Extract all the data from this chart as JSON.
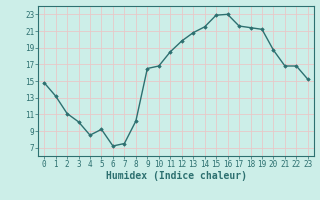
{
  "x": [
    0,
    1,
    2,
    3,
    4,
    5,
    6,
    7,
    8,
    9,
    10,
    11,
    12,
    13,
    14,
    15,
    16,
    17,
    18,
    19,
    20,
    21,
    22,
    23
  ],
  "y": [
    14.8,
    13.2,
    11.1,
    10.1,
    8.5,
    9.2,
    7.2,
    7.5,
    10.2,
    16.5,
    16.8,
    18.5,
    19.8,
    20.8,
    21.5,
    22.9,
    23.0,
    21.6,
    21.4,
    21.2,
    18.7,
    16.8,
    16.8,
    15.2
  ],
  "xlabel": "Humidex (Indice chaleur)",
  "ylim": [
    6,
    24
  ],
  "xlim": [
    -0.5,
    23.5
  ],
  "yticks": [
    7,
    9,
    11,
    13,
    15,
    17,
    19,
    21,
    23
  ],
  "xticks": [
    0,
    1,
    2,
    3,
    4,
    5,
    6,
    7,
    8,
    9,
    10,
    11,
    12,
    13,
    14,
    15,
    16,
    17,
    18,
    19,
    20,
    21,
    22,
    23
  ],
  "line_color": "#2d7070",
  "marker": "D",
  "marker_size": 1.8,
  "bg_color": "#cceee8",
  "plot_bg_color": "#cceee8",
  "grid_color": "#e8c8c8",
  "linewidth": 1.0,
  "tick_fontsize": 5.5,
  "xlabel_fontsize": 7
}
